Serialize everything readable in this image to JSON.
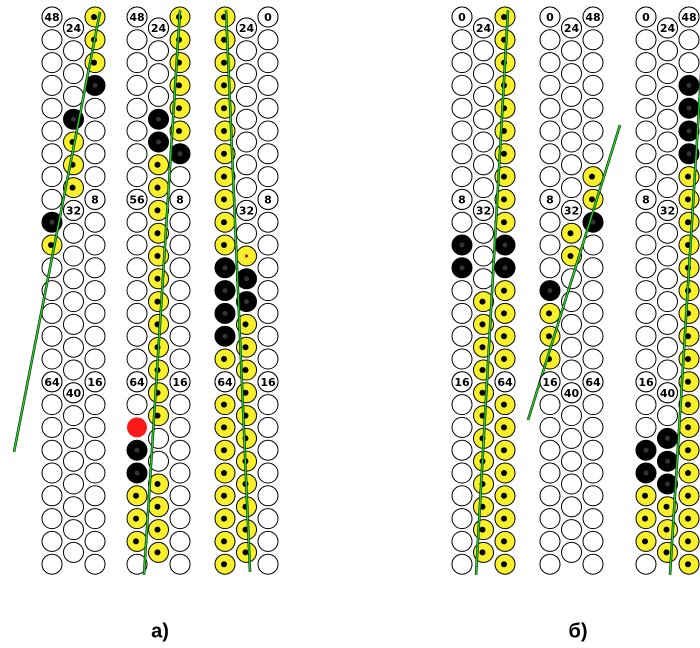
{
  "panels": [
    {
      "caption": "а)",
      "stacks": [
        {
          "labels": [
            48,
            24,
            32,
            8,
            64,
            40,
            16
          ]
        },
        {
          "labels": [
            48,
            24,
            56,
            8,
            64,
            16
          ]
        },
        {
          "labels": [
            24,
            0,
            32,
            8,
            64,
            16
          ]
        }
      ]
    },
    {
      "caption": "б)",
      "stacks": [
        {
          "labels": [
            0,
            24,
            8,
            32,
            16,
            64
          ]
        },
        {
          "labels": [
            0,
            24,
            48,
            8,
            32,
            16,
            40,
            64
          ]
        },
        {
          "labels": [
            0,
            24,
            48,
            8,
            32,
            16,
            40
          ]
        }
      ]
    }
  ]
}
